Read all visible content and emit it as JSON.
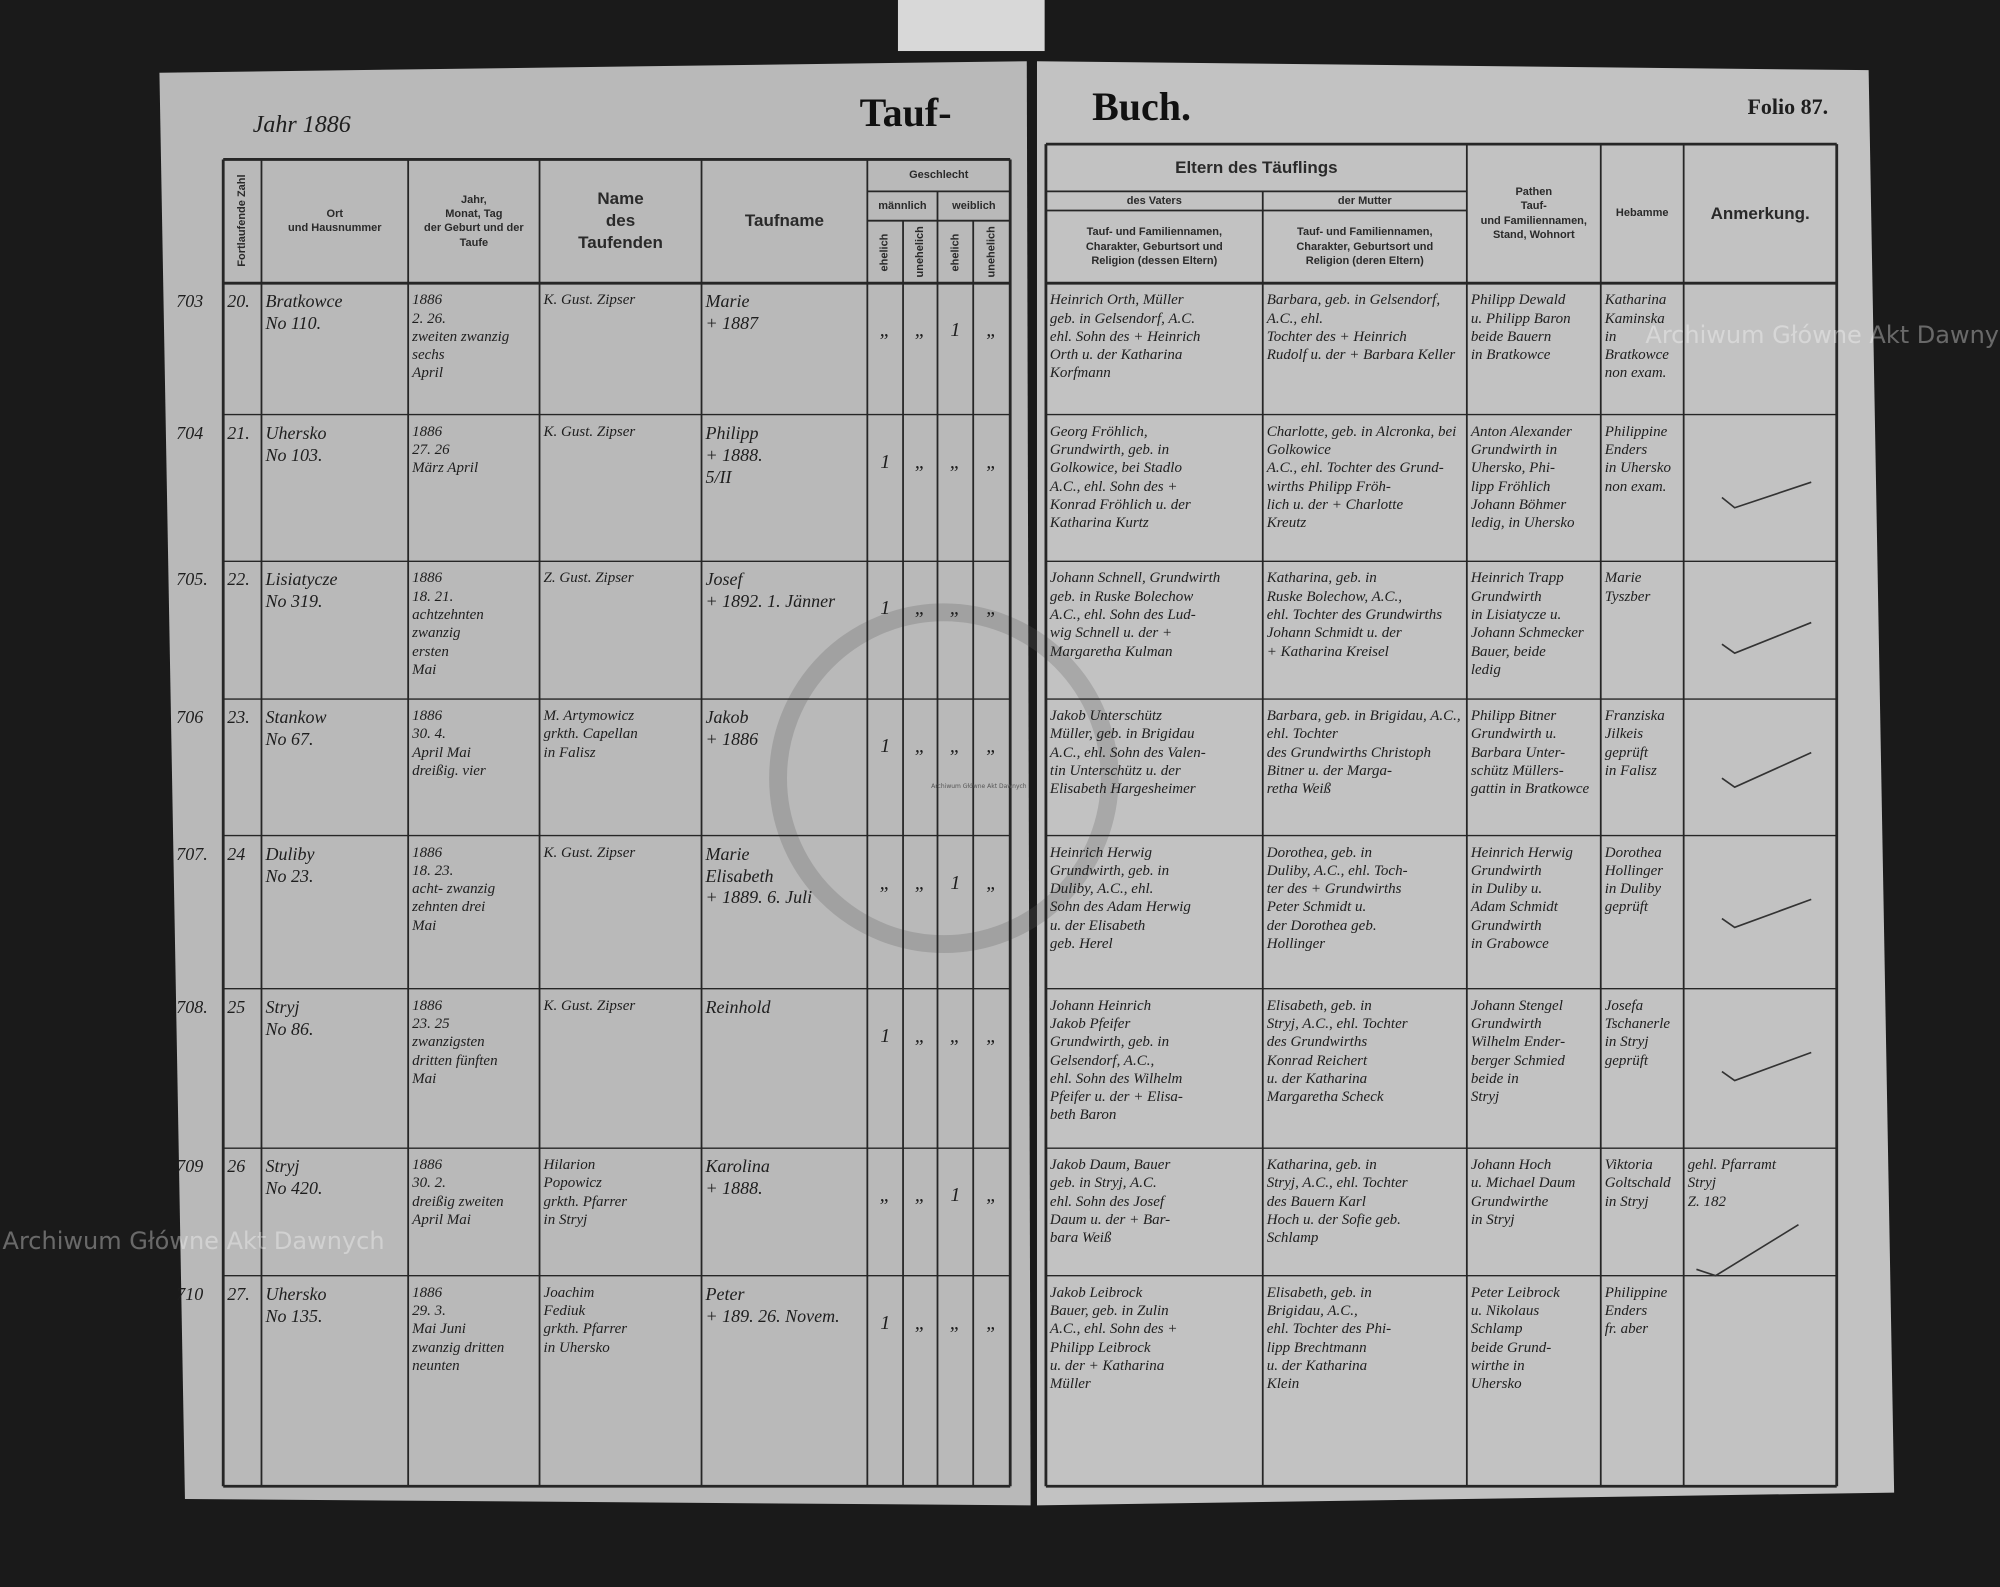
{
  "header": {
    "year": "Jahr 1886",
    "title_left": "Tauf-",
    "title_right": "Buch.",
    "folio": "Folio 87."
  },
  "columns": {
    "number": "Fortlaufende Zahl",
    "place": "Ort\nund Hausnummer",
    "date": "Jahr,\nMonat, Tag\nder Geburt und der\nTaufe",
    "baptizer": "Name\ndes\nTaufenden",
    "given_name": "Taufname",
    "sex": "Geschlecht",
    "male": "männlich",
    "female": "weiblich",
    "male_legit": "ehelich",
    "male_illegit": "unehelich",
    "female_legit": "ehelich",
    "female_illegit": "unehelich",
    "parents": "Eltern des Täuflings",
    "father": "des Vaters",
    "mother": "der Mutter",
    "father_desc": "Tauf- und Familiennamen,\nCharakter, Geburtsort und\nReligion (dessen Eltern)",
    "mother_desc": "Tauf- und Familiennamen,\nCharakter, Geburtsort und\nReligion (deren Eltern)",
    "godparents": "Pathen\nTauf-\nund Familiennamen,\nStand, Wohnort",
    "midwife": "Hebamme",
    "remarks": "Anmerkung."
  },
  "rows": [
    {
      "reg": "703",
      "seq": "20.",
      "place": "Bratkowce\nNo 110.",
      "date": "1886\n2.   26.\nzweiten zwanzig\nsechs\nApril",
      "baptizer": "K. Gust. Zipser",
      "given_name": "Marie\n+ 1887",
      "sex": [
        "„",
        "„",
        "1",
        "„"
      ],
      "father": "Heinrich Orth, Müller\ngeb. in Gelsendorf, A.C.\nehl. Sohn des + Heinrich\nOrth u. der Katharina\nKorfmann",
      "mother": "Barbara, geb. in Gelsendorf, A.C., ehl.\nTochter des + Heinrich\nRudolf u. der + Barbara Keller",
      "godparents": "Philipp Dewald\nu. Philipp Baron\nbeide Bauern\nin Bratkowce",
      "midwife": "Katharina\nKaminska\nin Bratkowce\nnon exam."
    },
    {
      "reg": "704",
      "seq": "21.",
      "place": "Uhersko\nNo 103.",
      "date": "1886\n27.   26\nMärz  April",
      "baptizer": "K. Gust. Zipser",
      "given_name": "Philipp\n+ 1888.\n5/II",
      "sex": [
        "1",
        "„",
        "„",
        "„"
      ],
      "father": "Georg Fröhlich,\nGrundwirth, geb. in\nGolkowice, bei Stadlo\nA.C., ehl. Sohn des +\nKonrad Fröhlich u. der\nKatharina Kurtz",
      "mother": "Charlotte, geb. in Alcronka, bei Golkowice\nA.C., ehl. Tochter des Grund-\nwirths Philipp Fröh-\nlich u. der + Charlotte\nKreutz",
      "godparents": "Anton Alexander\nGrundwirth in\nUhersko, Phi-\nlipp Fröhlich\nJohann Böhmer\nledig, in Uhersko",
      "midwife": "Philippine\nEnders\nin Uhersko\nnon exam."
    },
    {
      "reg": "705.",
      "seq": "22.",
      "place": "Lisiatycze\nNo 319.",
      "date": "1886\n18.   21.\nachtzehnten zwanzig\nersten\nMai",
      "baptizer": "Z. Gust. Zipser",
      "given_name": "Josef\n+ 1892. 1. Jänner",
      "sex": [
        "1",
        "„",
        "„",
        "„"
      ],
      "father": "Johann Schnell, Grundwirth\ngeb. in Ruske Bolechow\nA.C., ehl. Sohn des Lud-\nwig Schnell u. der +\nMargaretha Kulman",
      "mother": "Katharina, geb. in\nRuske Bolechow, A.C.,\nehl. Tochter des Grundwirths\nJohann Schmidt u. der\n+ Katharina Kreisel",
      "godparents": "Heinrich Trapp\nGrundwirth\nin Lisiatycze u.\nJohann Schmecker\nBauer, beide\nledig",
      "midwife": "Marie\nTyszber"
    },
    {
      "reg": "706",
      "seq": "23.",
      "place": "Stankow\nNo 67.",
      "date": "1886\n30.   4.\nApril   Mai\ndreißig. vier",
      "baptizer": "M. Artymowicz\ngrkth. Capellan\nin Falisz",
      "given_name": "Jakob\n+ 1886",
      "sex": [
        "1",
        "„",
        "„",
        "„"
      ],
      "father": "Jakob Unterschütz\nMüller, geb. in Brigidau\nA.C., ehl. Sohn des Valen-\ntin Unterschütz u. der\nElisabeth Hargesheimer",
      "mother": "Barbara, geb. in Brigidau, A.C., ehl. Tochter\ndes Grundwirths Christoph\nBitner u. der Marga-\nretha Weiß",
      "godparents": "Philipp Bitner\nGrundwirth u.\nBarbara Unter-\nschütz Müllers-\ngattin in Bratkowce",
      "midwife": "Franziska\nJilkeis\ngeprüft\nin Falisz"
    },
    {
      "reg": "707.",
      "seq": "24",
      "place": "Duliby\nNo 23.",
      "date": "1886\n18.   23.\nacht-  zwanzig\nzehnten  drei\nMai",
      "baptizer": "K. Gust. Zipser",
      "given_name": "Marie\nElisabeth\n+ 1889. 6. Juli",
      "sex": [
        "„",
        "„",
        "1",
        "„"
      ],
      "father": "Heinrich Herwig\nGrundwirth, geb. in\nDuliby, A.C., ehl.\nSohn des Adam Herwig\nu. der Elisabeth\ngeb. Herel",
      "mother": "Dorothea, geb. in\nDuliby, A.C., ehl. Toch-\nter des + Grundwirths\nPeter Schmidt u.\nder Dorothea geb.\nHollinger",
      "godparents": "Heinrich Herwig\nGrundwirth\nin Duliby u.\nAdam Schmidt\nGrundwirth\nin Grabowce",
      "midwife": "Dorothea\nHollinger\nin Duliby\ngeprüft"
    },
    {
      "reg": "708.",
      "seq": "25",
      "place": "Stryj\nNo 86.",
      "date": "1886\n23.   25\nzwanzigsten\ndritten fünften\nMai",
      "baptizer": "K. Gust. Zipser",
      "given_name": "Reinhold",
      "sex": [
        "1",
        "„",
        "„",
        "„"
      ],
      "father": "Johann Heinrich\nJakob Pfeifer\nGrundwirth, geb. in\nGelsendorf, A.C.,\nehl. Sohn des Wilhelm\nPfeifer u. der + Elisa-\nbeth Baron",
      "mother": "Elisabeth, geb. in\nStryj, A.C., ehl. Tochter\ndes Grundwirths\nKonrad Reichert\nu. der Katharina\nMargaretha Scheck",
      "godparents": "Johann Stengel\nGrundwirth\nWilhelm Ender-\nberger Schmied\nbeide in\nStryj",
      "midwife": "Josefa\nTschanerle\nin Stryj\ngeprüft"
    },
    {
      "reg": "709",
      "seq": "26",
      "place": "Stryj\nNo 420.",
      "date": "1886\n30.   2.\ndreißig zweiten\nApril  Mai",
      "baptizer": "Hilarion\nPopowicz\ngrkth. Pfarrer\nin Stryj",
      "given_name": "Karolina\n+ 1888.",
      "sex": [
        "„",
        "„",
        "1",
        "„"
      ],
      "father": "Jakob Daum, Bauer\ngeb. in Stryj, A.C.\nehl. Sohn des Josef\nDaum u. der + Bar-\nbara Weiß",
      "mother": "Katharina, geb. in\nStryj, A.C., ehl. Tochter\ndes Bauern Karl\nHoch u. der Sofie geb.\nSchlamp",
      "godparents": "Johann Hoch\nu. Michael Daum\nGrundwirthe\nin Stryj",
      "midwife": "Viktoria\nGoltschald\nin Stryj",
      "remarks": "gehl. Pfarramt\nStryj\nZ. 182"
    },
    {
      "reg": "710",
      "seq": "27.",
      "place": "Uhersko\nNo 135.",
      "date": "1886\n29.   3.\nMai  Juni\nzwanzig  dritten\nneunten",
      "baptizer": "Joachim\nFediuk\ngrkth. Pfarrer\nin Uhersko",
      "given_name": "Peter\n+ 189. 26. Novem.",
      "sex": [
        "1",
        "„",
        "„",
        "„"
      ],
      "father": "Jakob Leibrock\nBauer, geb. in Zulin\nA.C., ehl. Sohn des +\nPhilipp Leibrock\nu. der + Katharina\nMüller",
      "mother": "Elisabeth, geb. in\nBrigidau, A.C.,\nehl. Tochter des Phi-\nlipp Brechtmann\nu. der Katharina\nKlein",
      "godparents": "Peter Leibrock\nu. Nikolaus\nSchlamp\nbeide Grund-\nwirthe in\nUhersko",
      "midwife": "Philippine\nEnders\nfr. aber"
    }
  ],
  "watermarks": [
    "Archiwum Główne Akt Dawnych",
    "Archiwum Główne Akt Dawnych",
    "Archiwum Główne Akt Dawnych"
  ]
}
